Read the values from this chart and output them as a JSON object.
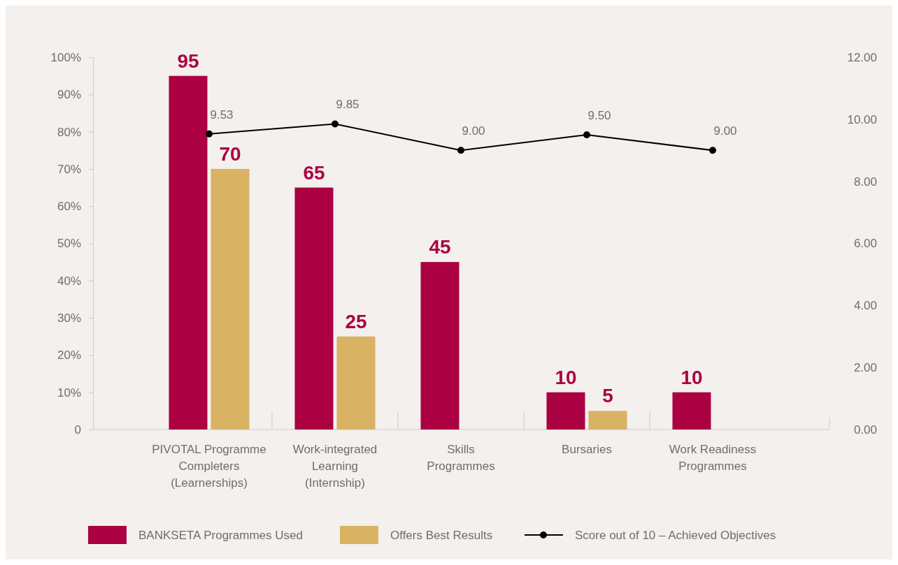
{
  "chart_data": {
    "type": "bar",
    "categories": [
      "PIVOTAL Programme\nCompleters\n(Learnerships)",
      "Work-integrated\nLearning\n(Internship)",
      "Skills\nProgrammes",
      "Bursaries",
      "Work Readiness\nProgrammes"
    ],
    "series": [
      {
        "name": "BANKSETA Programmes Used",
        "color": "#ab0042",
        "values": [
          95,
          65,
          45,
          10,
          10
        ]
      },
      {
        "name": "Offers Best Results",
        "color": "#d9b263",
        "values": [
          70,
          25,
          null,
          5,
          null
        ]
      },
      {
        "name": "Score out of 10 – Achieved Objectives",
        "type": "line",
        "axis": "y2",
        "color": "#000000",
        "marker": "circle",
        "values": [
          9.53,
          9.85,
          9.0,
          9.5,
          9.0
        ],
        "value_labels": [
          "9.53",
          "9.85",
          "9.00",
          "9.50",
          "9.00"
        ]
      }
    ],
    "data_labels": true,
    "ylim": [
      0,
      100
    ],
    "yticks": [
      {
        "value": 0,
        "label": "0"
      },
      {
        "value": 10,
        "label": "10%"
      },
      {
        "value": 20,
        "label": "20%"
      },
      {
        "value": 30,
        "label": "30%"
      },
      {
        "value": 40,
        "label": "40%"
      },
      {
        "value": 50,
        "label": "50%"
      },
      {
        "value": 60,
        "label": "60%"
      },
      {
        "value": 70,
        "label": "70%"
      },
      {
        "value": 80,
        "label": "80%"
      },
      {
        "value": 90,
        "label": "90%"
      },
      {
        "value": 100,
        "label": "100%"
      }
    ],
    "y2lim": [
      0,
      12
    ],
    "y2ticks": [
      {
        "value": 0,
        "label": "0.00"
      },
      {
        "value": 2,
        "label": "2.00"
      },
      {
        "value": 4,
        "label": "4.00"
      },
      {
        "value": 6,
        "label": "6.00"
      },
      {
        "value": 8,
        "label": "8.00"
      },
      {
        "value": 10,
        "label": "10.00"
      },
      {
        "value": 12,
        "label": "12.00"
      }
    ],
    "grid": false,
    "legend": "bottom"
  }
}
